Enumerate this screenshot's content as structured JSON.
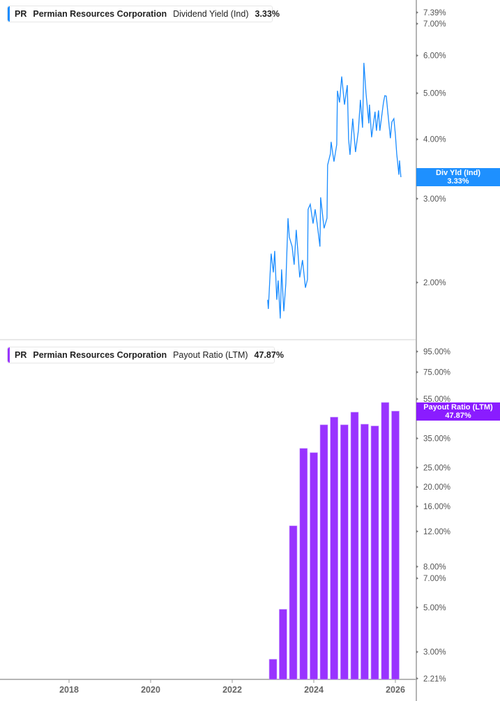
{
  "colors": {
    "dividend": "#1a8cff",
    "payout": "#9933ff",
    "badge_dividend": "#1e90ff",
    "badge_payout": "#8a1cff"
  },
  "top_legend": {
    "ticker": "PR",
    "company": "Permian Resources Corporation",
    "metric": "Dividend Yield (Ind)",
    "value": "3.33%"
  },
  "bottom_legend": {
    "ticker": "PR",
    "company": "Permian Resources Corporation",
    "metric": "Payout Ratio (LTM)",
    "value": "47.87%"
  },
  "top_badge": {
    "label": "Div Yld (Ind)",
    "value": "3.33%"
  },
  "bottom_badge": {
    "label": "Payout Ratio (LTM)",
    "value": "47.87%"
  },
  "chart_data": [
    {
      "type": "line",
      "scale": "log",
      "y_unit": "%",
      "yticks": [
        "7.39%",
        "7.00%",
        "6.00%",
        "5.00%",
        "4.00%",
        "3.00%",
        "2.00%"
      ],
      "ytick_values": [
        7.39,
        7.0,
        6.0,
        5.0,
        4.0,
        3.0,
        2.0
      ],
      "series": [
        {
          "name": "Dividend Yield (Ind)",
          "points": [
            [
              "2022-11-14",
              1.84
            ],
            [
              "2022-11-20",
              1.76
            ],
            [
              "2022-12-15",
              2.3
            ],
            [
              "2023-01-04",
              2.1
            ],
            [
              "2023-01-16",
              2.33
            ],
            [
              "2023-02-04",
              1.84
            ],
            [
              "2023-02-16",
              2.02
            ],
            [
              "2023-03-07",
              1.68
            ],
            [
              "2023-03-19",
              2.13
            ],
            [
              "2023-04-08",
              1.74
            ],
            [
              "2023-04-26",
              1.99
            ],
            [
              "2023-05-15",
              2.73
            ],
            [
              "2023-05-27",
              2.49
            ],
            [
              "2023-06-21",
              2.38
            ],
            [
              "2023-07-09",
              2.18
            ],
            [
              "2023-07-28",
              2.58
            ],
            [
              "2023-08-10",
              2.35
            ],
            [
              "2023-08-28",
              2.05
            ],
            [
              "2023-09-22",
              2.23
            ],
            [
              "2023-10-18",
              1.95
            ],
            [
              "2023-11-05",
              2.03
            ],
            [
              "2023-11-11",
              2.85
            ],
            [
              "2023-11-30",
              2.92
            ],
            [
              "2023-12-25",
              2.66
            ],
            [
              "2024-01-13",
              2.85
            ],
            [
              "2024-01-31",
              2.66
            ],
            [
              "2024-02-25",
              2.38
            ],
            [
              "2024-03-02",
              3.02
            ],
            [
              "2024-04-02",
              2.6
            ],
            [
              "2024-04-28",
              2.73
            ],
            [
              "2024-05-04",
              3.53
            ],
            [
              "2024-05-29",
              3.73
            ],
            [
              "2024-06-04",
              3.95
            ],
            [
              "2024-06-30",
              3.59
            ],
            [
              "2024-07-25",
              3.9
            ],
            [
              "2024-07-31",
              5.06
            ],
            [
              "2024-08-19",
              4.78
            ],
            [
              "2024-09-07",
              5.42
            ],
            [
              "2024-10-02",
              4.73
            ],
            [
              "2024-10-27",
              5.2
            ],
            [
              "2024-11-08",
              4.0
            ],
            [
              "2024-11-21",
              3.71
            ],
            [
              "2024-12-15",
              4.42
            ],
            [
              "2025-01-09",
              3.76
            ],
            [
              "2025-02-04",
              4.17
            ],
            [
              "2025-02-22",
              4.84
            ],
            [
              "2025-03-13",
              4.23
            ],
            [
              "2025-03-25",
              5.79
            ],
            [
              "2025-04-13",
              5.01
            ],
            [
              "2025-05-08",
              4.32
            ],
            [
              "2025-05-14",
              4.73
            ],
            [
              "2025-06-02",
              4.04
            ],
            [
              "2025-07-03",
              4.57
            ],
            [
              "2025-07-15",
              4.17
            ],
            [
              "2025-08-03",
              4.6
            ],
            [
              "2025-08-15",
              4.17
            ],
            [
              "2025-09-16",
              4.78
            ],
            [
              "2025-09-28",
              4.94
            ],
            [
              "2025-10-11",
              4.93
            ],
            [
              "2025-10-29",
              4.47
            ],
            [
              "2025-11-17",
              4.02
            ],
            [
              "2025-11-30",
              4.35
            ],
            [
              "2025-12-18",
              4.42
            ],
            [
              "2026-01-01",
              4.09
            ],
            [
              "2026-01-13",
              3.73
            ],
            [
              "2026-02-01",
              3.37
            ],
            [
              "2026-02-07",
              3.61
            ],
            [
              "2026-02-19",
              3.33
            ]
          ]
        }
      ]
    },
    {
      "type": "bar",
      "scale": "log",
      "y_unit": "%",
      "xticks": [
        "2018",
        "2020",
        "2022",
        "2024",
        "2026"
      ],
      "yticks": [
        "95.00%",
        "75.00%",
        "55.00%",
        "45.00%",
        "35.00%",
        "25.00%",
        "20.00%",
        "16.00%",
        "12.00%",
        "8.00%",
        "7.00%",
        "5.00%",
        "3.00%",
        "2.21%"
      ],
      "ytick_values": [
        95,
        75,
        55,
        45,
        35,
        25,
        20,
        16,
        12,
        8,
        7,
        5,
        3,
        2.21
      ],
      "categories": [
        "2022-12-31",
        "2023-03-31",
        "2023-06-30",
        "2023-09-30",
        "2023-12-31",
        "2024-03-31",
        "2024-06-30",
        "2024-09-30",
        "2024-12-31",
        "2025-03-31",
        "2025-06-30",
        "2025-09-30",
        "2025-12-31"
      ],
      "series": [
        {
          "name": "Payout Ratio (LTM)",
          "values": [
            2.76,
            4.9,
            12.8,
            31.2,
            29.7,
            40.9,
            44.7,
            40.9,
            47.3,
            41.2,
            40.4,
            52.9,
            47.87
          ]
        }
      ]
    }
  ]
}
